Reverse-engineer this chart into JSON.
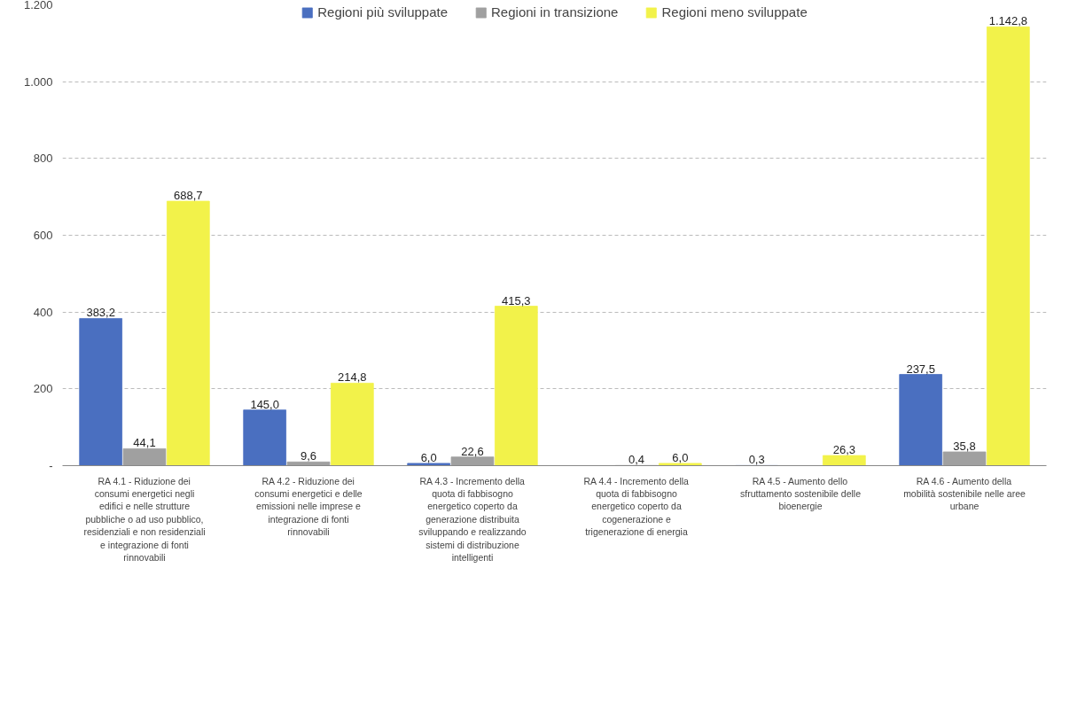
{
  "chart_data": {
    "type": "bar",
    "categories": [
      "RA 4.1 - Riduzione dei\nconsumi energetici negli\nedifici e nelle strutture\npubbliche o ad uso pubblico,\nresidenziali e non residenziali\ne integrazione di fonti\nrinnovabili",
      "RA 4.2 - Riduzione dei\nconsumi energetici e delle\nemissioni nelle imprese e\nintegrazione di fonti\nrinnovabili",
      "RA 4.3 - Incremento della\nquota di fabbisogno\nenergetico coperto da\ngenerazione distribuita\nsviluppando e realizzando\nsistemi di distribuzione\nintelligenti",
      "RA 4.4 - Incremento della\nquota di fabbisogno\nenergetico coperto da\ncogenerazione e\ntrigenerazione di energia",
      "RA 4.5 - Aumento dello\nsfruttamento sostenibile delle\nbioenergie",
      "RA 4.6 - Aumento della\nmobilità sostenibile nelle aree\nurbane"
    ],
    "series": [
      {
        "name": "Regioni più sviluppate",
        "color": "#4a6fc0",
        "values": [
          383.2,
          145.0,
          6.0,
          null,
          0.3,
          237.5
        ],
        "value_labels": [
          "383,2",
          "145,0",
          "6,0",
          null,
          "0,3",
          "237,5"
        ]
      },
      {
        "name": "Regioni in transizione",
        "color": "#a0a0a0",
        "values": [
          44.1,
          9.6,
          22.6,
          0.4,
          null,
          35.8
        ],
        "value_labels": [
          "44,1",
          "9,6",
          "22,6",
          "0,4",
          null,
          "35,8"
        ]
      },
      {
        "name": "Regioni meno sviluppate",
        "color": "#f2f24a",
        "values": [
          688.7,
          214.8,
          415.3,
          6.0,
          26.3,
          1142.8
        ],
        "value_labels": [
          "688,7",
          "214,8",
          "415,3",
          "6,0",
          "26,3",
          "1.142,8"
        ]
      }
    ],
    "ylim": [
      0,
      1200
    ],
    "yticks": [
      {
        "value": 0,
        "label": "-"
      },
      200,
      400,
      600,
      800,
      {
        "value": 1000,
        "label": "1.000"
      },
      {
        "value": 1200,
        "label": "1.200"
      }
    ],
    "grid": "y",
    "legend": "top"
  }
}
